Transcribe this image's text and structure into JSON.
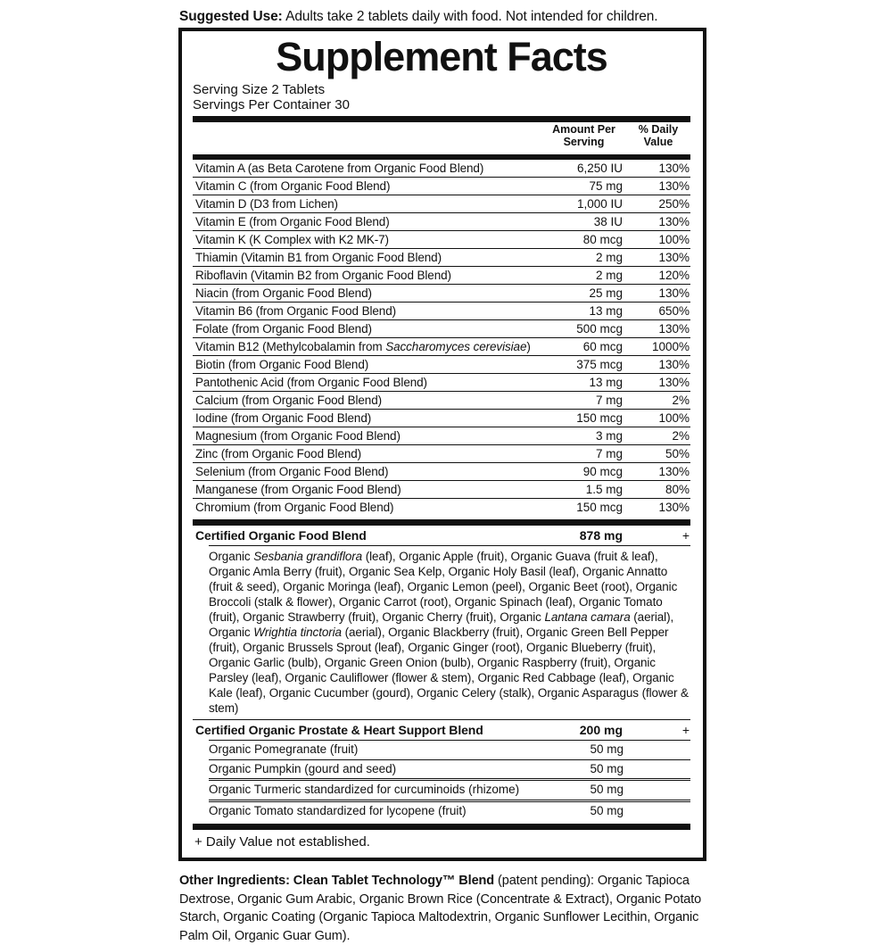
{
  "suggested_use": {
    "label": "Suggested Use:",
    "text": " Adults take 2 tablets daily with food. Not intended for children."
  },
  "panel": {
    "title": "Supplement Facts",
    "serving_size": "Serving Size 2 Tablets",
    "servings_per_container": "Servings Per Container 30",
    "columns": {
      "amount": "Amount Per\nServing",
      "dv": "% Daily\nValue"
    },
    "nutrients": [
      {
        "name": "Vitamin A (as Beta Carotene from Organic Food Blend)",
        "amount": "6,250 IU",
        "dv": "130%"
      },
      {
        "name": "Vitamin C (from Organic Food Blend)",
        "amount": "75 mg",
        "dv": "130%"
      },
      {
        "name": "Vitamin D (D3 from Lichen)",
        "amount": "1,000 IU",
        "dv": "250%"
      },
      {
        "name": "Vitamin E (from Organic Food Blend)",
        "amount": "38 IU",
        "dv": "130%"
      },
      {
        "name": "Vitamin K (K Complex with K2 MK-7)",
        "amount": "80 mcg",
        "dv": "100%"
      },
      {
        "name": "Thiamin (Vitamin B1 from Organic Food Blend)",
        "amount": "2 mg",
        "dv": "130%"
      },
      {
        "name": "Riboflavin (Vitamin B2 from Organic Food Blend)",
        "amount": "2 mg",
        "dv": "120%"
      },
      {
        "name": "Niacin (from Organic Food Blend)",
        "amount": "25 mg",
        "dv": "130%"
      },
      {
        "name": "Vitamin B6 (from Organic Food Blend)",
        "amount": "13 mg",
        "dv": "650%"
      },
      {
        "name": "Folate (from Organic Food Blend)",
        "amount": "500 mcg",
        "dv": "130%"
      },
      {
        "name": [
          {
            "t": "Vitamin B12 (Methylcobalamin from "
          },
          {
            "t": "Saccharomyces cerevisiae",
            "i": true
          },
          {
            "t": ")"
          }
        ],
        "amount": "60 mcg",
        "dv": "1000%"
      },
      {
        "name": "Biotin (from Organic Food Blend)",
        "amount": "375 mcg",
        "dv": "130%"
      },
      {
        "name": "Pantothenic Acid (from Organic Food Blend)",
        "amount": "13 mg",
        "dv": "130%"
      },
      {
        "name": "Calcium (from Organic Food Blend)",
        "amount": "7 mg",
        "dv": "2%"
      },
      {
        "name": "Iodine (from Organic Food Blend)",
        "amount": "150 mcg",
        "dv": "100%"
      },
      {
        "name": "Magnesium (from Organic Food Blend)",
        "amount": "3 mg",
        "dv": "2%"
      },
      {
        "name": "Zinc (from Organic Food Blend)",
        "amount": "7 mg",
        "dv": "50%"
      },
      {
        "name": "Selenium (from Organic Food Blend)",
        "amount": "90 mcg",
        "dv": "130%"
      },
      {
        "name": "Manganese (from Organic Food Blend)",
        "amount": "1.5 mg",
        "dv": "80%"
      },
      {
        "name": "Chromium (from Organic Food Blend)",
        "amount": "150 mcg",
        "dv": "130%"
      }
    ],
    "food_blend": {
      "name": "Certified Organic Food Blend",
      "amount": "878 mg",
      "dv": "+",
      "ingredients": [
        {
          "t": "Organic "
        },
        {
          "t": "Sesbania grandiflora",
          "i": true
        },
        {
          "t": " (leaf), Organic Apple (fruit), Organic Guava (fruit & leaf), Organic Amla Berry (fruit), Organic Sea Kelp, Organic Holy Basil (leaf), Organic Annatto (fruit & seed), Organic Moringa (leaf), Organic Lemon (peel), Organic Beet (root), Organic Broccoli (stalk & flower), Organic Carrot (root), Organic Spinach (leaf), Organic Tomato (fruit), Organic Strawberry (fruit), Organic Cherry (fruit), Organic "
        },
        {
          "t": "Lantana camara",
          "i": true
        },
        {
          "t": " (aerial), Organic "
        },
        {
          "t": "Wrightia tinctoria",
          "i": true
        },
        {
          "t": " (aerial), Organic Blackberry (fruit), Organic Green Bell Pepper (fruit), Organic Brussels Sprout (leaf), Organic Ginger (root), Organic Blueberry (fruit), Organic Garlic (bulb), Organic Green Onion (bulb), Organic Raspberry (fruit), Organic Parsley (leaf), Organic Cauliflower (flower & stem), Organic Red Cabbage (leaf), Organic Kale (leaf), Organic Cucumber (gourd), Organic Celery (stalk), Organic Asparagus (flower & stem)"
        }
      ]
    },
    "prostate_blend": {
      "name": "Certified Organic Prostate & Heart Support Blend",
      "amount": "200 mg",
      "dv": "+",
      "items": [
        {
          "name": "Organic Pomegranate (fruit)",
          "amount": "50 mg"
        },
        {
          "name": "Organic Pumpkin (gourd and seed)",
          "amount": "50 mg"
        },
        {
          "name": "Organic Turmeric standardized for curcuminoids (rhizome)",
          "amount": "50 mg"
        },
        {
          "name": "Organic Tomato standardized for lycopene (fruit)",
          "amount": "50 mg"
        }
      ]
    },
    "footnote": "+ Daily Value not established."
  },
  "other_ingredients": {
    "bold": "Other Ingredients: Clean Tablet Technology™ Blend",
    "rest": " (patent pending): Organic Tapioca Dextrose, Organic Gum Arabic, Organic Brown Rice (Concentrate & Extract), Organic Potato Starch, Organic Coating (Organic Tapioca Maltodextrin, Organic Sunflower Lecithin, Organic Palm Oil, Organic Guar Gum)."
  },
  "colors": {
    "ink": "#111111",
    "background": "#ffffff"
  }
}
